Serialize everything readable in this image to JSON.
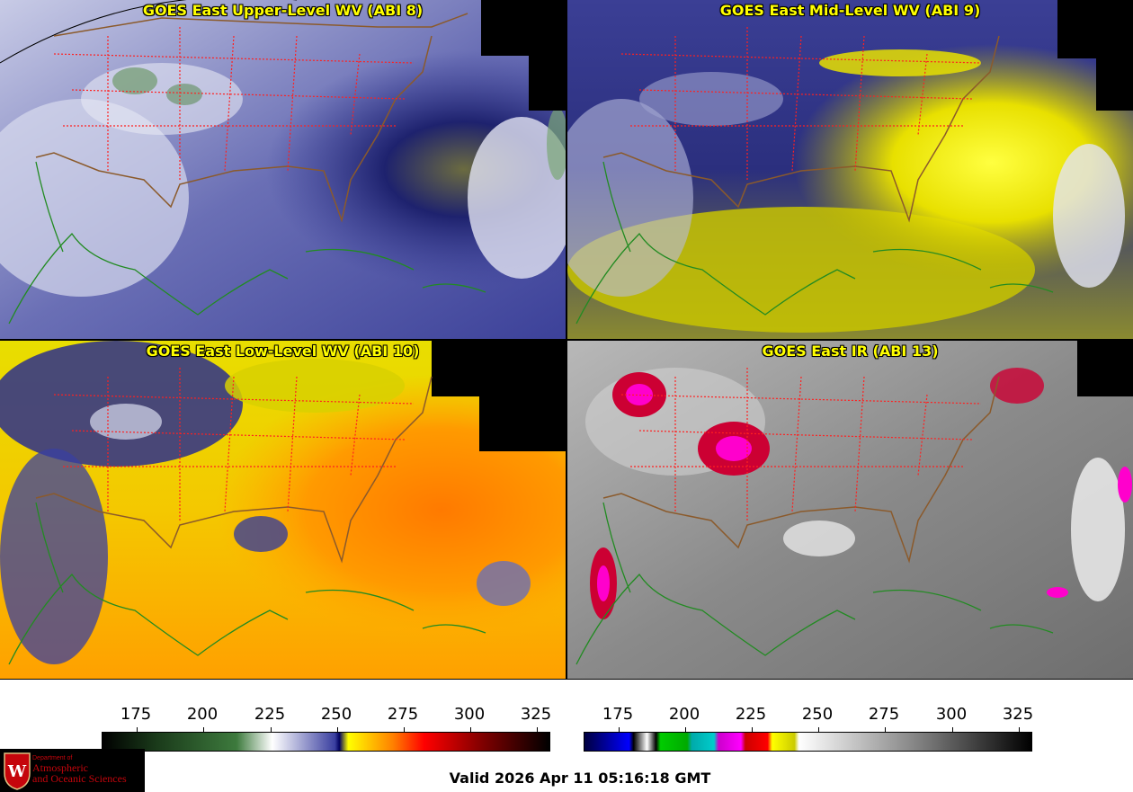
{
  "panels": [
    {
      "title": "GOES East Upper-Level WV (ABI 8)",
      "theme": "upper"
    },
    {
      "title": "GOES East Mid-Level WV (ABI 9)",
      "theme": "mid"
    },
    {
      "title": "GOES East Low-Level WV (ABI 10)",
      "theme": "low"
    },
    {
      "title": "GOES East IR (ABI 13)",
      "theme": "ir"
    }
  ],
  "colorbars": {
    "wv": {
      "ticks": [
        "175",
        "200",
        "225",
        "250",
        "275",
        "300",
        "325"
      ]
    },
    "ir": {
      "ticks": [
        "175",
        "200",
        "225",
        "250",
        "275",
        "300",
        "325"
      ]
    }
  },
  "logo": {
    "line1": "Department of",
    "line2": "Atmospheric",
    "line3": "and Oceanic Sciences",
    "letter": "W"
  },
  "valid_time": "Valid 2026 Apr 11 05:16:18 GMT",
  "colors": {
    "title": "#ffff00",
    "state_lines": "#ff2020",
    "coast_lines": "#228b22",
    "country_lines": "#8b5a2b"
  }
}
